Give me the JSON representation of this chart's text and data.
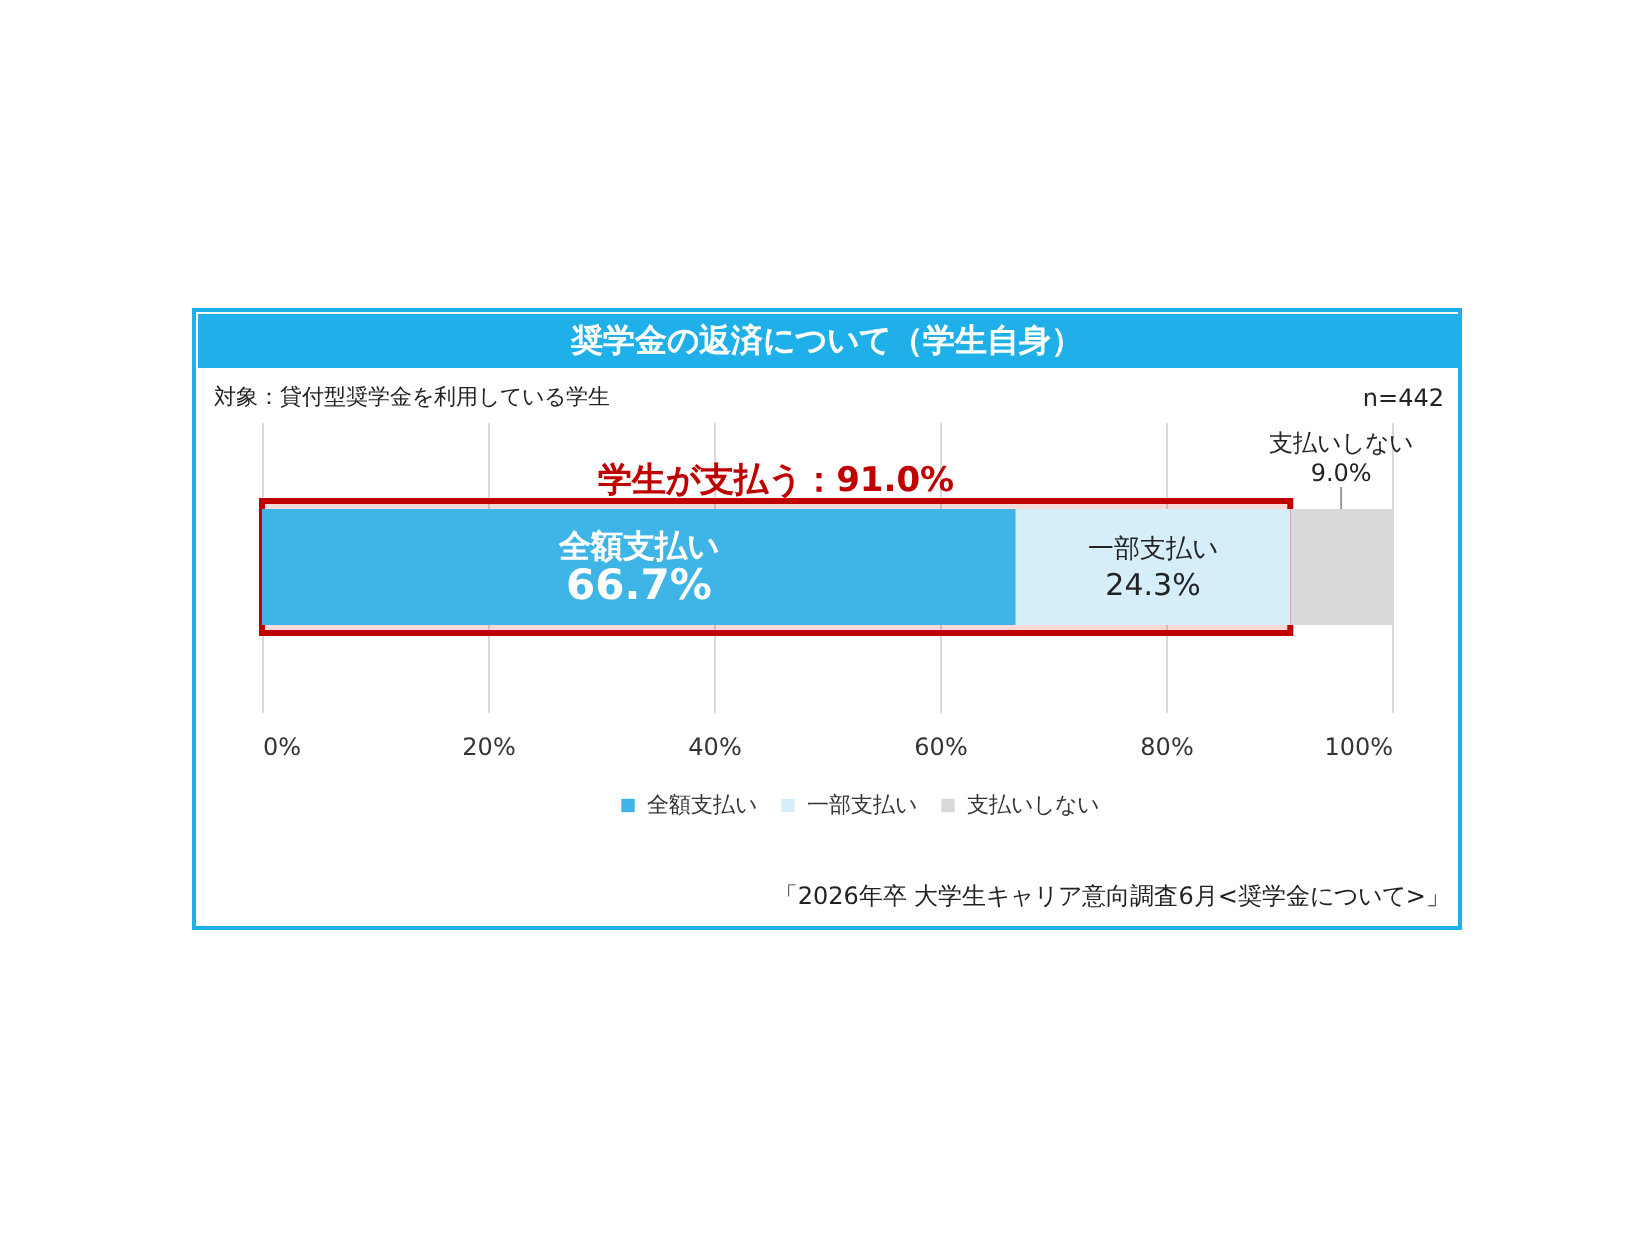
{
  "chart_data": {
    "type": "bar",
    "orientation": "horizontal",
    "stacked": true,
    "title": "奨学金の返済について（学生自身）",
    "subtitle": "対象：貸付型奨学金を利用している学生",
    "annotations": [
      "n=442",
      "「2026年卒 大学生キャリア意向調査6月<奨学金について>」"
    ],
    "categories": [
      null
    ],
    "series": [
      {
        "name": "全額支払い",
        "color": "#3fb4e7",
        "values": [
          66.7
        ],
        "value_labels": [
          "66.7%"
        ]
      },
      {
        "name": "一部支払い",
        "color": "#d6eefa",
        "values": [
          24.3
        ],
        "value_labels": [
          "24.3%"
        ]
      },
      {
        "name": "支払いしない",
        "color": "#d9d9d9",
        "values": [
          9.0
        ],
        "value_labels": [
          "9.0%"
        ]
      }
    ],
    "xlim": [
      0,
      100
    ],
    "xticks": [
      {
        "value": 0,
        "label": "0%"
      },
      {
        "value": 20,
        "label": "20%"
      },
      {
        "value": 40,
        "label": "40%"
      },
      {
        "value": 60,
        "label": "60%"
      },
      {
        "value": 80,
        "label": "80%"
      },
      {
        "value": 100,
        "label": "100%"
      }
    ],
    "grid": "x",
    "legend": "bottom",
    "tick_labels": "x",
    "bands": [
      {
        "axis": "x",
        "from": 0,
        "to": 91.0,
        "label": "学生が支払う：91.0%",
        "color": "#c00000"
      }
    ]
  }
}
